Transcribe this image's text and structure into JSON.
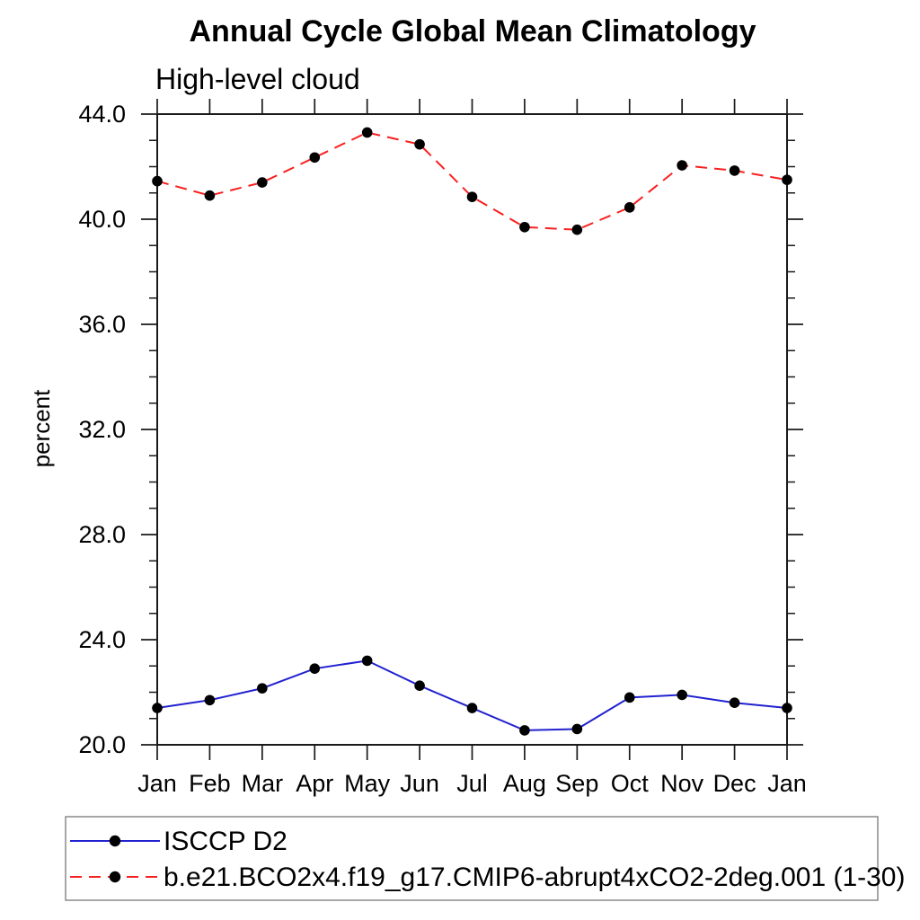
{
  "title": "Annual Cycle Global Mean Climatology",
  "subtitle": "High-level cloud",
  "chart_data": {
    "type": "line",
    "categories": [
      "Jan",
      "Feb",
      "Mar",
      "Apr",
      "May",
      "Jun",
      "Jul",
      "Aug",
      "Sep",
      "Oct",
      "Nov",
      "Dec",
      "Jan"
    ],
    "xlabel": "",
    "ylabel": "percent",
    "ylim": [
      20.0,
      44.0
    ],
    "ytick_labels": [
      "20.0",
      "24.0",
      "28.0",
      "32.0",
      "36.0",
      "40.0",
      "44.0"
    ],
    "ytick_values": [
      20,
      24,
      28,
      32,
      36,
      40,
      44
    ],
    "ytick_minor_step": 1.0,
    "grid": false,
    "legend_position": "bottom-left-box",
    "axis_color": "#1a1a1a",
    "marker_color": "#000000",
    "series": [
      {
        "name": "ISCCP D2",
        "color": "#2222d0",
        "style": "solid",
        "marker": "filled-circle",
        "values": [
          21.4,
          21.7,
          22.15,
          22.9,
          23.2,
          22.25,
          21.4,
          20.55,
          20.6,
          21.8,
          21.9,
          21.6,
          21.4
        ]
      },
      {
        "name": "b.e21.BCO2x4.f19_g17.CMIP6-abrupt4xCO2-2deg.001 (1-30)",
        "color": "#f82020",
        "style": "dashed",
        "marker": "filled-circle",
        "values": [
          41.45,
          40.9,
          41.4,
          42.35,
          43.3,
          42.85,
          40.85,
          39.7,
          39.6,
          40.45,
          42.05,
          41.85,
          41.5
        ]
      }
    ]
  }
}
